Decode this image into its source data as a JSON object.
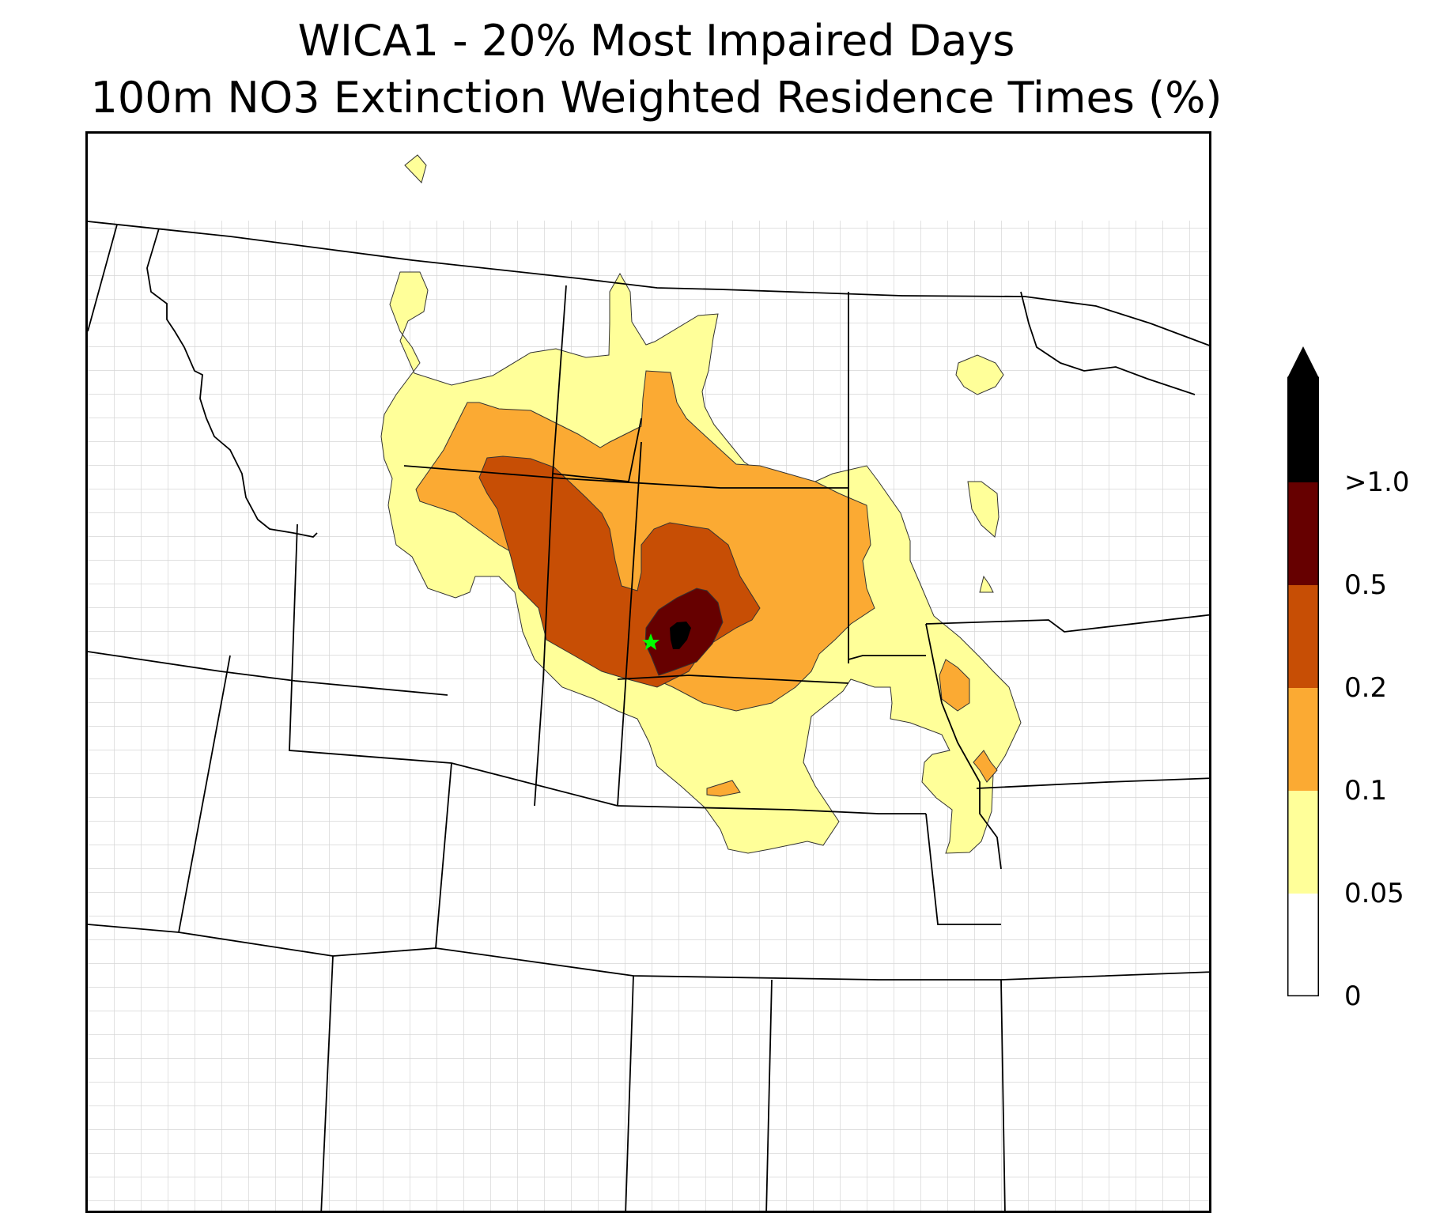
{
  "title": {
    "line1": "WICA1 - 20% Most Impaired Days",
    "line2": "100m NO3 Extinction Weighted Residence Times (%)"
  },
  "site": {
    "name": "WICA1",
    "marker_color": "#00ff00"
  },
  "colorbar": {
    "extend": "max",
    "levels": [
      "0",
      "0.05",
      "0.1",
      "0.2",
      "0.5",
      ">1.0"
    ],
    "colors": [
      "#ffffff",
      "#ffff99",
      "#fbaa33",
      "#c74e05",
      "#660000",
      "#000000"
    ]
  },
  "map": {
    "state_border_color": "#000000",
    "county_border_color": "#a0a0a0"
  }
}
